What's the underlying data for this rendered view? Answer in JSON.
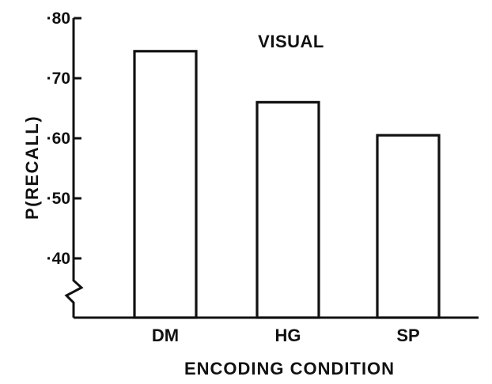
{
  "chart_data": {
    "type": "bar",
    "title": "VISUAL",
    "xlabel": "ENCODING CONDITION",
    "ylabel": "P(RECALL)",
    "categories": [
      "DM",
      "HG",
      "SP"
    ],
    "values": [
      0.745,
      0.66,
      0.605
    ],
    "ylim": [
      0.4,
      0.8
    ],
    "yticks": [
      0.8,
      0.7,
      0.6,
      0.5,
      0.4
    ],
    "ytick_labels": [
      "·80",
      "·70",
      "·60",
      "·50",
      "·40"
    ],
    "axis_break": true,
    "grid": false
  }
}
